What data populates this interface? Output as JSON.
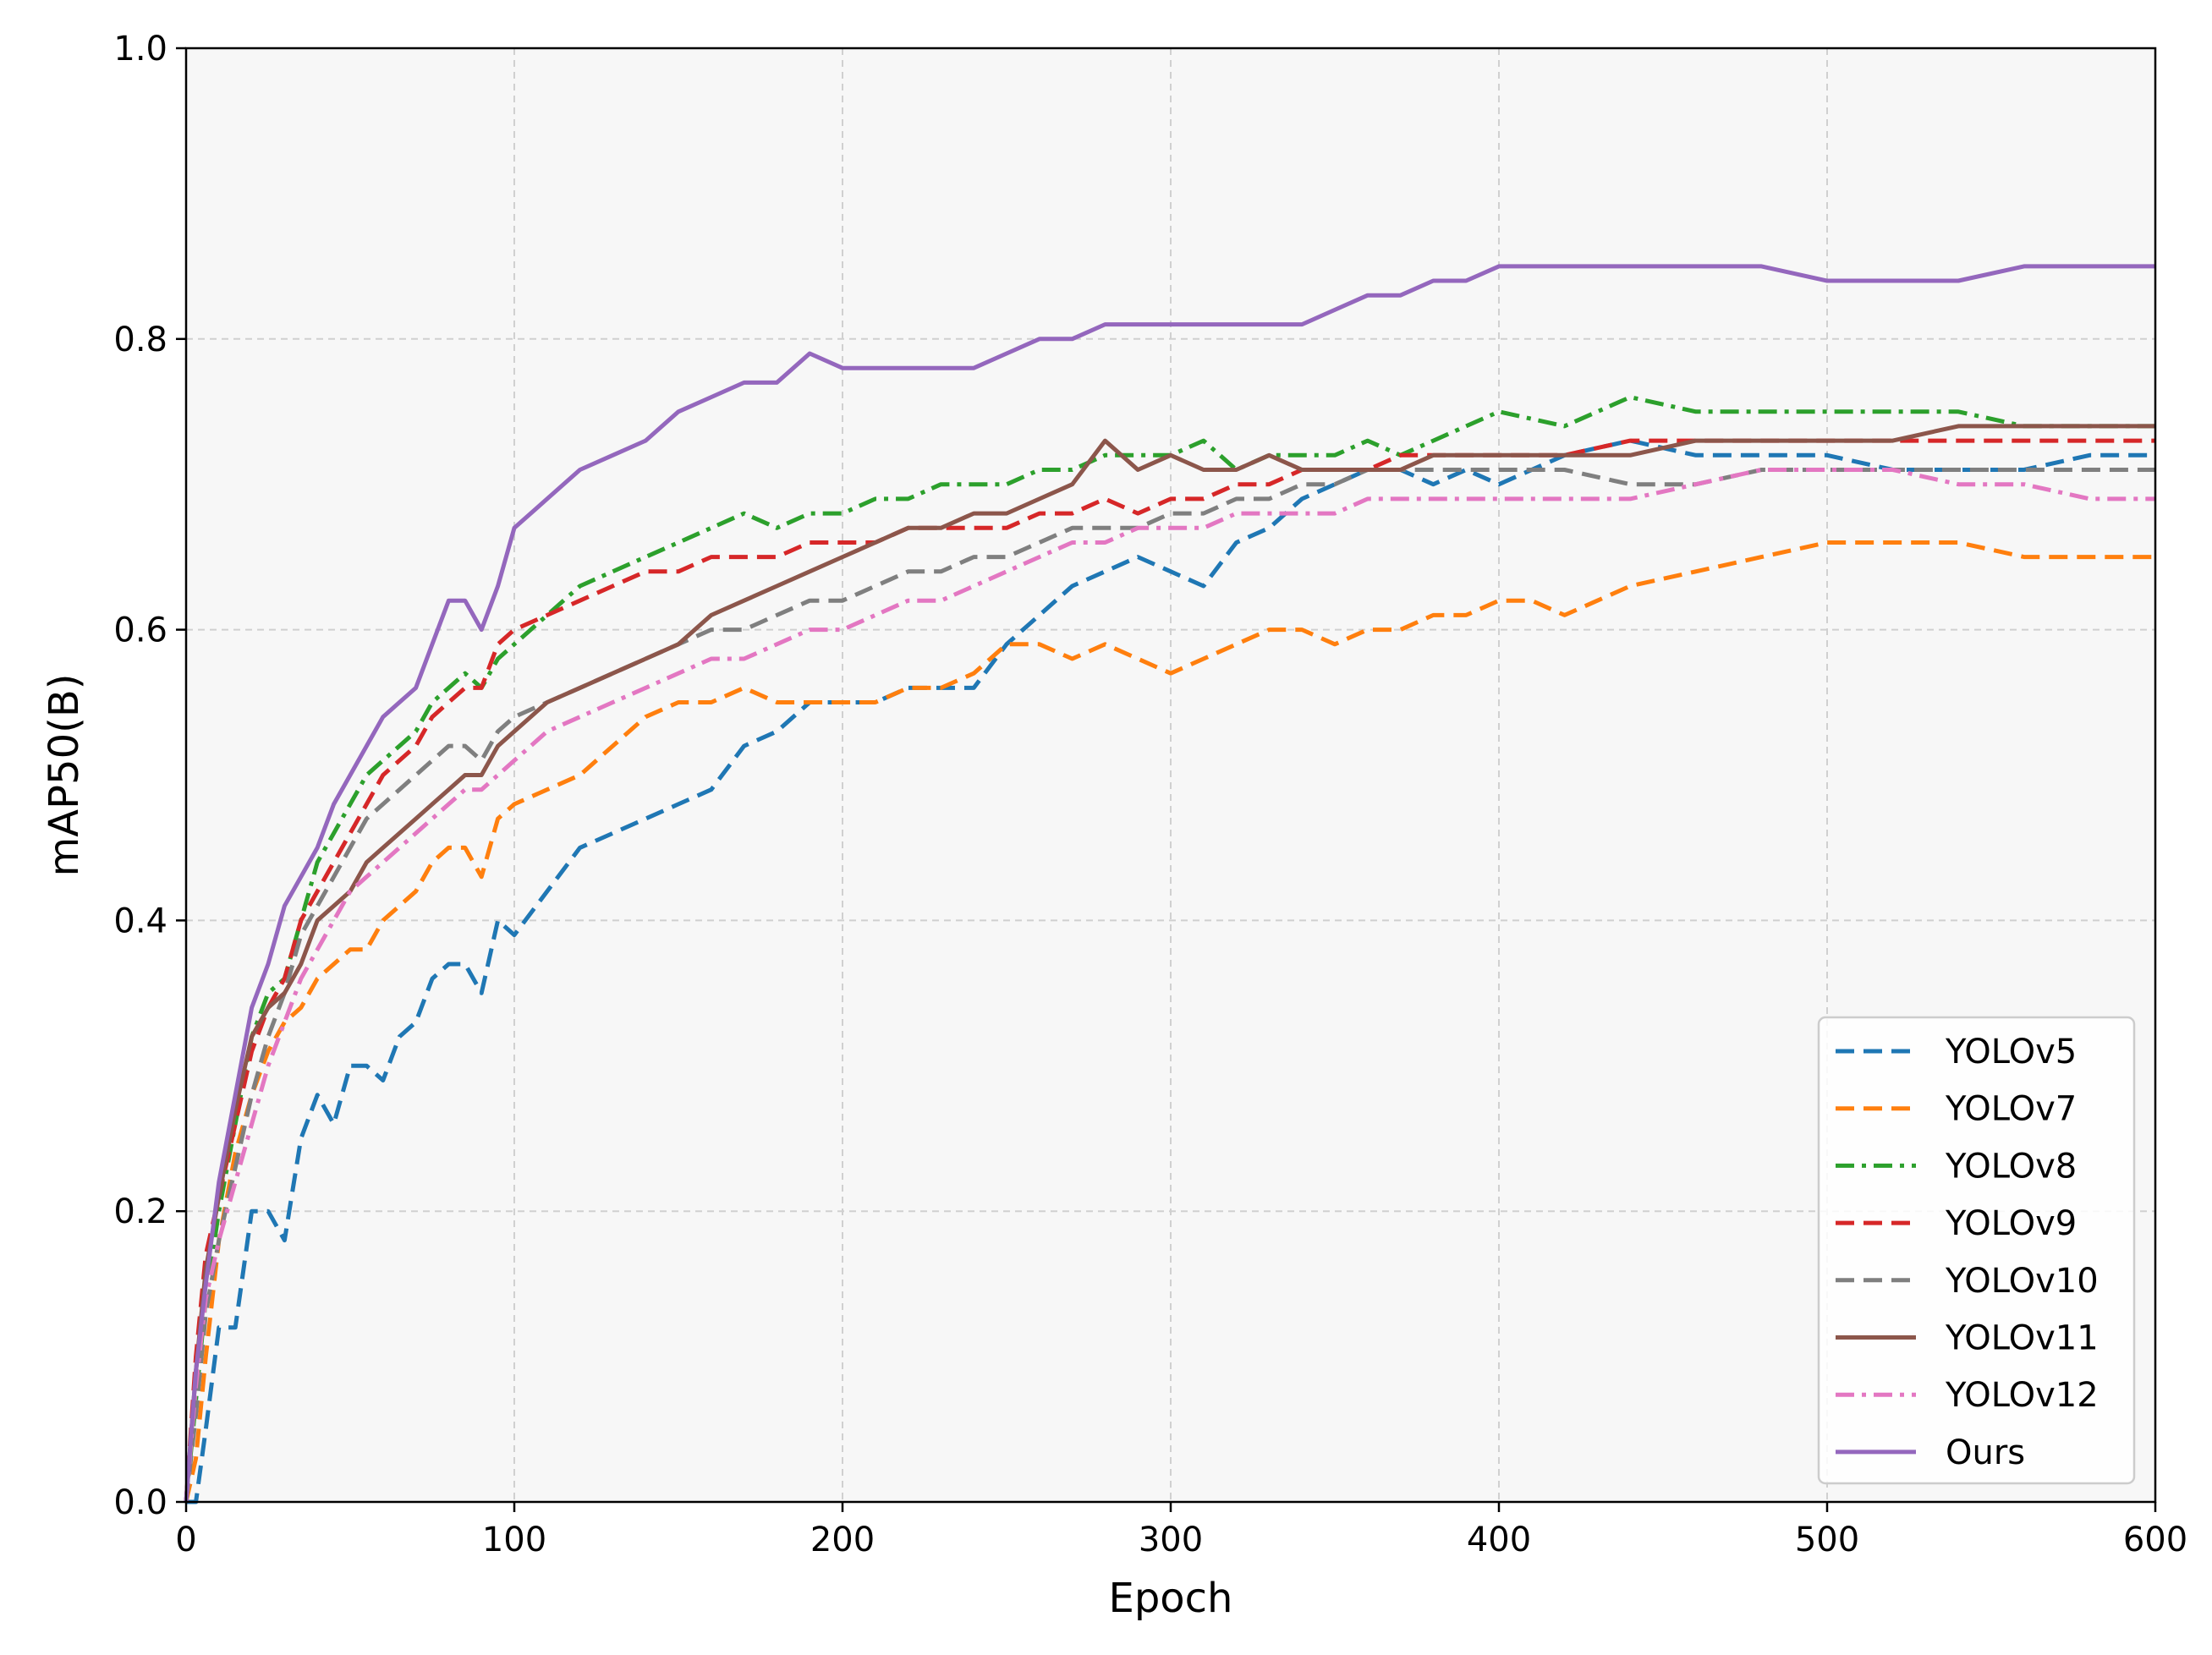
{
  "chart_data": {
    "type": "line",
    "title": "",
    "xlabel": "Epoch",
    "ylabel": "mAP50(B)",
    "xlim": [
      0,
      600
    ],
    "ylim": [
      0.0,
      1.0
    ],
    "xticks": [
      0,
      100,
      200,
      300,
      400,
      500,
      600
    ],
    "xtick_labels": [
      "0",
      "100",
      "200",
      "300",
      "400",
      "500",
      "600"
    ],
    "yticks": [
      0.0,
      0.2,
      0.4,
      0.6,
      0.8,
      1.0
    ],
    "ytick_labels": [
      "0.0",
      "0.2",
      "0.4",
      "0.6",
      "0.8",
      "1.0"
    ],
    "grid": true,
    "legend_position": "lower-right",
    "background": "#f7f7f7",
    "series": [
      {
        "name": "YOLOv5",
        "color": "#1f77b4",
        "style": "dashed",
        "x": [
          0,
          3,
          6,
          10,
          15,
          20,
          25,
          30,
          35,
          40,
          45,
          50,
          55,
          60,
          65,
          70,
          75,
          80,
          85,
          90,
          95,
          100,
          110,
          120,
          130,
          140,
          150,
          160,
          170,
          180,
          190,
          200,
          210,
          220,
          230,
          240,
          250,
          260,
          270,
          280,
          290,
          300,
          310,
          320,
          330,
          340,
          350,
          360,
          370,
          380,
          390,
          400,
          420,
          440,
          460,
          480,
          500,
          520,
          540,
          560,
          580,
          600
        ],
        "y": [
          0.0,
          0.0,
          0.05,
          0.12,
          0.12,
          0.2,
          0.2,
          0.18,
          0.25,
          0.28,
          0.26,
          0.3,
          0.3,
          0.29,
          0.32,
          0.33,
          0.36,
          0.37,
          0.37,
          0.35,
          0.4,
          0.39,
          0.42,
          0.45,
          0.46,
          0.47,
          0.48,
          0.49,
          0.52,
          0.53,
          0.55,
          0.55,
          0.55,
          0.56,
          0.56,
          0.56,
          0.59,
          0.61,
          0.63,
          0.64,
          0.65,
          0.64,
          0.63,
          0.66,
          0.67,
          0.69,
          0.7,
          0.71,
          0.71,
          0.7,
          0.71,
          0.7,
          0.72,
          0.73,
          0.72,
          0.72,
          0.72,
          0.71,
          0.71,
          0.71,
          0.72,
          0.72
        ]
      },
      {
        "name": "YOLOv7",
        "color": "#ff7f0e",
        "style": "dashed",
        "x": [
          0,
          3,
          6,
          10,
          15,
          20,
          25,
          30,
          35,
          40,
          45,
          50,
          55,
          60,
          65,
          70,
          75,
          80,
          85,
          90,
          95,
          100,
          110,
          120,
          130,
          140,
          150,
          160,
          170,
          180,
          190,
          200,
          210,
          220,
          230,
          240,
          250,
          260,
          270,
          280,
          290,
          300,
          310,
          320,
          330,
          340,
          350,
          360,
          370,
          380,
          390,
          400,
          410,
          420,
          430,
          440,
          460,
          480,
          500,
          520,
          540,
          560,
          580,
          600
        ],
        "y": [
          0.0,
          0.03,
          0.1,
          0.18,
          0.24,
          0.28,
          0.31,
          0.33,
          0.34,
          0.36,
          0.37,
          0.38,
          0.38,
          0.4,
          0.41,
          0.42,
          0.44,
          0.45,
          0.45,
          0.43,
          0.47,
          0.48,
          0.49,
          0.5,
          0.52,
          0.54,
          0.55,
          0.55,
          0.56,
          0.55,
          0.55,
          0.55,
          0.55,
          0.56,
          0.56,
          0.57,
          0.59,
          0.59,
          0.58,
          0.59,
          0.58,
          0.57,
          0.58,
          0.59,
          0.6,
          0.6,
          0.59,
          0.6,
          0.6,
          0.61,
          0.61,
          0.62,
          0.62,
          0.61,
          0.62,
          0.63,
          0.64,
          0.65,
          0.66,
          0.66,
          0.66,
          0.65,
          0.65,
          0.65
        ]
      },
      {
        "name": "YOLOv8",
        "color": "#2ca02c",
        "style": "dashdot",
        "x": [
          0,
          3,
          6,
          10,
          15,
          20,
          25,
          30,
          35,
          40,
          45,
          50,
          55,
          60,
          65,
          70,
          75,
          80,
          85,
          90,
          95,
          100,
          110,
          120,
          130,
          140,
          150,
          160,
          170,
          180,
          190,
          200,
          210,
          220,
          230,
          240,
          250,
          260,
          270,
          280,
          290,
          300,
          310,
          320,
          330,
          340,
          350,
          360,
          370,
          380,
          390,
          400,
          420,
          440,
          460,
          480,
          500,
          520,
          540,
          560,
          580,
          600
        ],
        "y": [
          0.0,
          0.07,
          0.14,
          0.2,
          0.26,
          0.32,
          0.35,
          0.36,
          0.4,
          0.44,
          0.46,
          0.48,
          0.5,
          0.51,
          0.52,
          0.53,
          0.55,
          0.56,
          0.57,
          0.56,
          0.58,
          0.59,
          0.61,
          0.63,
          0.64,
          0.65,
          0.66,
          0.67,
          0.68,
          0.67,
          0.68,
          0.68,
          0.69,
          0.69,
          0.7,
          0.7,
          0.7,
          0.71,
          0.71,
          0.72,
          0.72,
          0.72,
          0.73,
          0.71,
          0.72,
          0.72,
          0.72,
          0.73,
          0.72,
          0.73,
          0.74,
          0.75,
          0.74,
          0.76,
          0.75,
          0.75,
          0.75,
          0.75,
          0.75,
          0.74,
          0.74,
          0.74
        ]
      },
      {
        "name": "YOLOv9",
        "color": "#d62728",
        "style": "dashed",
        "x": [
          0,
          3,
          6,
          10,
          15,
          20,
          25,
          30,
          35,
          40,
          45,
          50,
          55,
          60,
          65,
          70,
          75,
          80,
          85,
          90,
          95,
          100,
          110,
          120,
          130,
          140,
          150,
          160,
          170,
          180,
          190,
          200,
          210,
          220,
          230,
          240,
          250,
          260,
          270,
          280,
          290,
          300,
          310,
          320,
          330,
          340,
          350,
          360,
          370,
          380,
          390,
          400,
          420,
          440,
          460,
          480,
          500,
          520,
          540,
          560,
          580,
          600
        ],
        "y": [
          0.0,
          0.1,
          0.17,
          0.21,
          0.26,
          0.31,
          0.34,
          0.36,
          0.4,
          0.42,
          0.44,
          0.46,
          0.48,
          0.5,
          0.51,
          0.52,
          0.54,
          0.55,
          0.56,
          0.56,
          0.59,
          0.6,
          0.61,
          0.62,
          0.63,
          0.64,
          0.64,
          0.65,
          0.65,
          0.65,
          0.66,
          0.66,
          0.66,
          0.67,
          0.67,
          0.67,
          0.67,
          0.68,
          0.68,
          0.69,
          0.68,
          0.69,
          0.69,
          0.7,
          0.7,
          0.71,
          0.71,
          0.71,
          0.72,
          0.72,
          0.72,
          0.72,
          0.72,
          0.73,
          0.73,
          0.73,
          0.73,
          0.73,
          0.73,
          0.73,
          0.73,
          0.73
        ]
      },
      {
        "name": "YOLOv10",
        "color": "#7f7f7f",
        "style": "dashed",
        "x": [
          0,
          3,
          6,
          10,
          15,
          20,
          25,
          30,
          35,
          40,
          45,
          50,
          55,
          60,
          65,
          70,
          75,
          80,
          85,
          90,
          95,
          100,
          110,
          120,
          130,
          140,
          150,
          160,
          170,
          180,
          190,
          200,
          210,
          220,
          230,
          240,
          250,
          260,
          270,
          280,
          290,
          300,
          310,
          320,
          330,
          340,
          350,
          360,
          370,
          380,
          390,
          400,
          420,
          440,
          460,
          480,
          500,
          520,
          540,
          560,
          580,
          600
        ],
        "y": [
          0.0,
          0.06,
          0.13,
          0.18,
          0.23,
          0.28,
          0.32,
          0.35,
          0.39,
          0.41,
          0.43,
          0.45,
          0.47,
          0.48,
          0.49,
          0.5,
          0.51,
          0.52,
          0.52,
          0.51,
          0.53,
          0.54,
          0.55,
          0.56,
          0.57,
          0.58,
          0.59,
          0.6,
          0.6,
          0.61,
          0.62,
          0.62,
          0.63,
          0.64,
          0.64,
          0.65,
          0.65,
          0.66,
          0.67,
          0.67,
          0.67,
          0.68,
          0.68,
          0.69,
          0.69,
          0.7,
          0.7,
          0.71,
          0.71,
          0.71,
          0.71,
          0.71,
          0.71,
          0.7,
          0.7,
          0.71,
          0.71,
          0.71,
          0.71,
          0.71,
          0.71,
          0.71
        ]
      },
      {
        "name": "YOLOv11",
        "color": "#8c564b",
        "style": "solid",
        "x": [
          0,
          3,
          6,
          10,
          15,
          20,
          25,
          30,
          35,
          40,
          45,
          50,
          55,
          60,
          65,
          70,
          75,
          80,
          85,
          90,
          95,
          100,
          110,
          120,
          130,
          140,
          150,
          160,
          170,
          180,
          190,
          200,
          210,
          220,
          230,
          240,
          250,
          260,
          270,
          280,
          290,
          300,
          310,
          320,
          330,
          340,
          350,
          360,
          370,
          380,
          390,
          400,
          420,
          440,
          460,
          480,
          500,
          520,
          540,
          560,
          580,
          600
        ],
        "y": [
          0.0,
          0.09,
          0.16,
          0.21,
          0.27,
          0.32,
          0.34,
          0.35,
          0.37,
          0.4,
          0.41,
          0.42,
          0.44,
          0.45,
          0.46,
          0.47,
          0.48,
          0.49,
          0.5,
          0.5,
          0.52,
          0.53,
          0.55,
          0.56,
          0.57,
          0.58,
          0.59,
          0.61,
          0.62,
          0.63,
          0.64,
          0.65,
          0.66,
          0.67,
          0.67,
          0.68,
          0.68,
          0.69,
          0.7,
          0.73,
          0.71,
          0.72,
          0.71,
          0.71,
          0.72,
          0.71,
          0.71,
          0.71,
          0.71,
          0.72,
          0.72,
          0.72,
          0.72,
          0.72,
          0.73,
          0.73,
          0.73,
          0.73,
          0.74,
          0.74,
          0.74,
          0.74
        ]
      },
      {
        "name": "YOLOv12",
        "color": "#e377c2",
        "style": "dashdot",
        "x": [
          0,
          3,
          6,
          10,
          15,
          20,
          25,
          30,
          35,
          40,
          45,
          50,
          55,
          60,
          65,
          70,
          75,
          80,
          85,
          90,
          95,
          100,
          110,
          120,
          130,
          140,
          150,
          160,
          170,
          180,
          190,
          200,
          210,
          220,
          230,
          240,
          250,
          260,
          270,
          280,
          290,
          300,
          310,
          320,
          330,
          340,
          350,
          360,
          370,
          380,
          390,
          400,
          420,
          440,
          460,
          480,
          500,
          520,
          540,
          560,
          580,
          600
        ],
        "y": [
          0.0,
          0.08,
          0.14,
          0.18,
          0.22,
          0.26,
          0.3,
          0.33,
          0.36,
          0.38,
          0.4,
          0.42,
          0.43,
          0.44,
          0.45,
          0.46,
          0.47,
          0.48,
          0.49,
          0.49,
          0.5,
          0.51,
          0.53,
          0.54,
          0.55,
          0.56,
          0.57,
          0.58,
          0.58,
          0.59,
          0.6,
          0.6,
          0.61,
          0.62,
          0.62,
          0.63,
          0.64,
          0.65,
          0.66,
          0.66,
          0.67,
          0.67,
          0.67,
          0.68,
          0.68,
          0.68,
          0.68,
          0.69,
          0.69,
          0.69,
          0.69,
          0.69,
          0.69,
          0.69,
          0.7,
          0.71,
          0.71,
          0.71,
          0.7,
          0.7,
          0.69,
          0.69
        ]
      },
      {
        "name": "Ours",
        "color": "#9467bd",
        "style": "solid",
        "x": [
          0,
          3,
          6,
          10,
          15,
          20,
          25,
          30,
          35,
          40,
          45,
          50,
          55,
          60,
          65,
          70,
          75,
          80,
          85,
          90,
          95,
          100,
          110,
          120,
          130,
          140,
          150,
          160,
          170,
          180,
          190,
          200,
          210,
          220,
          230,
          240,
          250,
          260,
          270,
          280,
          290,
          300,
          310,
          320,
          330,
          340,
          350,
          360,
          370,
          380,
          390,
          400,
          420,
          440,
          460,
          480,
          500,
          520,
          540,
          560,
          580,
          600
        ],
        "y": [
          0.0,
          0.09,
          0.15,
          0.22,
          0.28,
          0.34,
          0.37,
          0.41,
          0.43,
          0.45,
          0.48,
          0.5,
          0.52,
          0.54,
          0.55,
          0.56,
          0.59,
          0.62,
          0.62,
          0.6,
          0.63,
          0.67,
          0.69,
          0.71,
          0.72,
          0.73,
          0.75,
          0.76,
          0.77,
          0.77,
          0.79,
          0.78,
          0.78,
          0.78,
          0.78,
          0.78,
          0.79,
          0.8,
          0.8,
          0.81,
          0.81,
          0.81,
          0.81,
          0.81,
          0.81,
          0.81,
          0.82,
          0.83,
          0.83,
          0.84,
          0.84,
          0.85,
          0.85,
          0.85,
          0.85,
          0.85,
          0.84,
          0.84,
          0.84,
          0.85,
          0.85,
          0.85
        ]
      }
    ]
  }
}
